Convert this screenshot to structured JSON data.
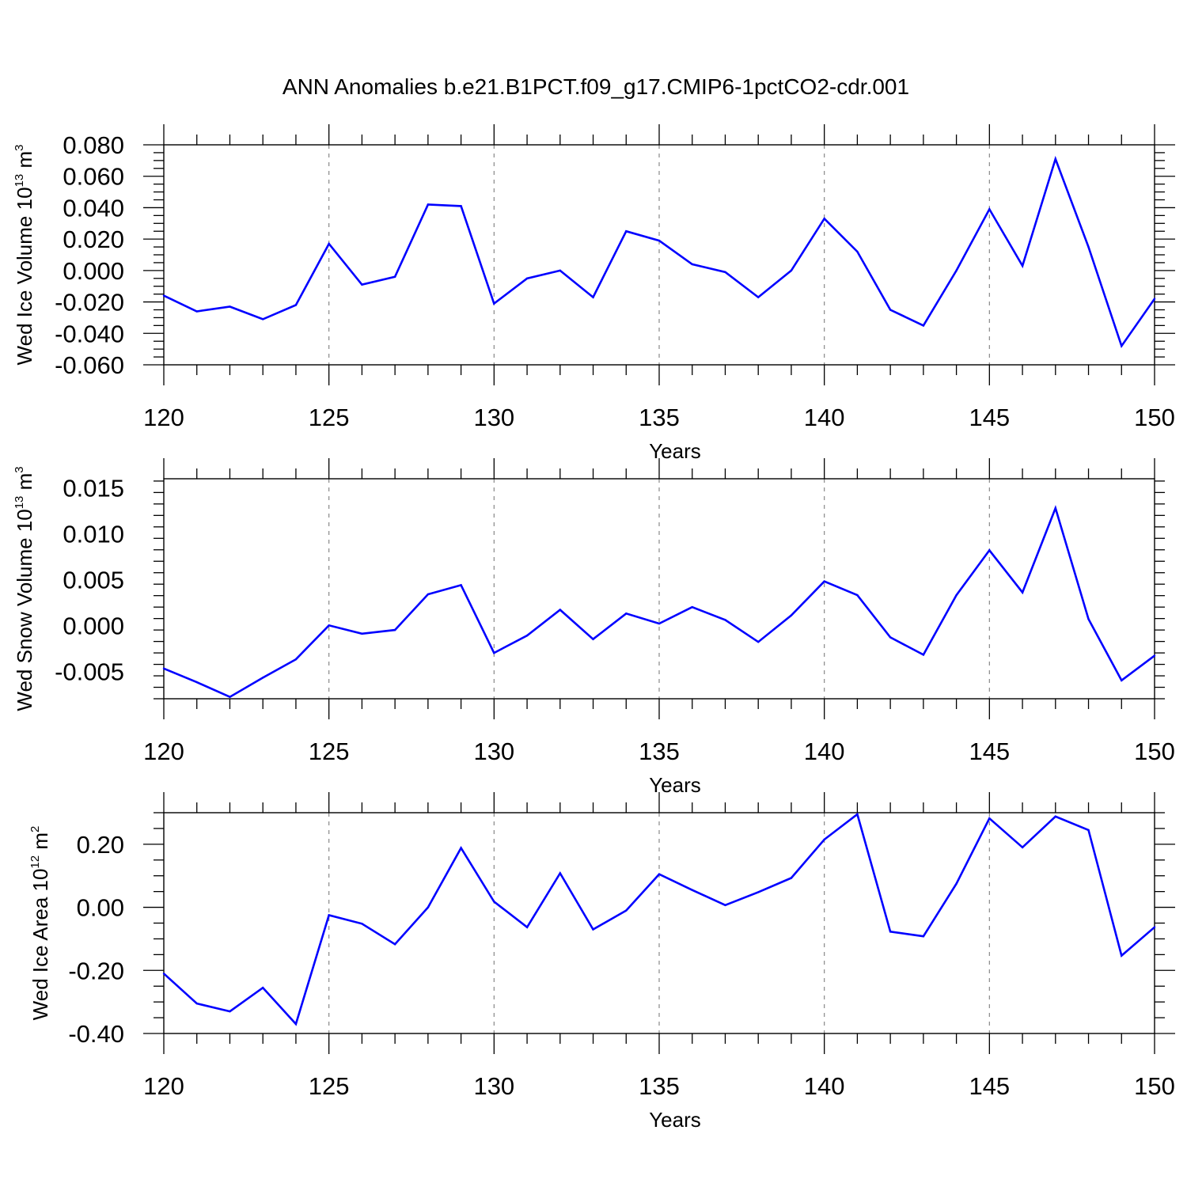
{
  "figure": {
    "title": "ANN Anomalies b.e21.B1PCT.f09_g17.CMIP6-1pctCO2-cdr.001"
  },
  "chart_data": [
    {
      "type": "line",
      "title": "",
      "xlabel": "Years",
      "ylabel": {
        "prefix": "Wed Ice Volume 10",
        "exponent": "13",
        "unit": " m",
        "unit_exponent": "3"
      },
      "xlim": [
        120,
        150
      ],
      "ylim": [
        -0.06,
        0.08
      ],
      "x_ticks": [
        120,
        125,
        130,
        135,
        140,
        145,
        150
      ],
      "x_tick_labels": [
        "120",
        "125",
        "130",
        "135",
        "140",
        "145",
        "150"
      ],
      "y_ticks": [
        -0.06,
        -0.04,
        -0.02,
        0.0,
        0.02,
        0.04,
        0.06,
        0.08
      ],
      "y_tick_labels": [
        "-0.060",
        "-0.040",
        "-0.020",
        "0.000",
        "0.020",
        "0.040",
        "0.060",
        "0.080"
      ],
      "grid": "vertical dashed at major x ticks",
      "line_color": "#0000ff",
      "x": [
        120,
        121,
        122,
        123,
        124,
        125,
        126,
        127,
        128,
        129,
        130,
        131,
        132,
        133,
        134,
        135,
        136,
        137,
        138,
        139,
        140,
        141,
        142,
        143,
        144,
        145,
        146,
        147,
        148,
        149,
        150
      ],
      "values": [
        -0.016,
        -0.026,
        -0.023,
        -0.031,
        -0.022,
        0.017,
        -0.009,
        -0.004,
        0.042,
        0.041,
        -0.021,
        -0.005,
        0.0,
        -0.017,
        0.025,
        0.019,
        0.004,
        -0.001,
        -0.017,
        0.0,
        0.033,
        0.012,
        -0.025,
        -0.035,
        0.0,
        0.039,
        0.003,
        0.071,
        0.015,
        -0.048,
        -0.018
      ]
    },
    {
      "type": "line",
      "title": "",
      "xlabel": "Years",
      "ylabel": {
        "prefix": "Wed Snow Volume 10",
        "exponent": "13",
        "unit": " m",
        "unit_exponent": "3"
      },
      "xlim": [
        120,
        150
      ],
      "ylim": [
        -0.008,
        0.016
      ],
      "x_ticks": [
        120,
        125,
        130,
        135,
        140,
        145,
        150
      ],
      "x_tick_labels": [
        "120",
        "125",
        "130",
        "135",
        "140",
        "145",
        "150"
      ],
      "y_ticks": [
        -0.005,
        0.0,
        0.005,
        0.01,
        0.015
      ],
      "y_tick_labels": [
        "-0.005",
        "0.000",
        "0.005",
        "0.010",
        "0.015"
      ],
      "grid": "vertical dashed at major x ticks",
      "line_color": "#0000ff",
      "x": [
        120,
        121,
        122,
        123,
        124,
        125,
        126,
        127,
        128,
        129,
        130,
        131,
        132,
        133,
        134,
        135,
        136,
        137,
        138,
        139,
        140,
        141,
        142,
        143,
        144,
        145,
        146,
        147,
        148,
        149,
        150
      ],
      "values": [
        -0.0047,
        -0.0062,
        -0.0078,
        -0.0057,
        -0.0037,
        0.0,
        -0.0009,
        -0.0005,
        0.0034,
        0.0044,
        -0.003,
        -0.0011,
        0.0017,
        -0.0015,
        0.0013,
        0.0002,
        0.002,
        0.0006,
        -0.0018,
        0.0011,
        0.0048,
        0.0033,
        -0.0013,
        -0.0032,
        0.0033,
        0.0082,
        0.0036,
        0.0128,
        0.0007,
        -0.006,
        -0.0033
      ]
    },
    {
      "type": "line",
      "title": "",
      "xlabel": "Years",
      "ylabel": {
        "prefix": "Wed Ice Area 10",
        "exponent": "12",
        "unit": " m",
        "unit_exponent": "2"
      },
      "xlim": [
        120,
        150
      ],
      "ylim": [
        -0.4,
        0.3
      ],
      "x_ticks": [
        120,
        125,
        130,
        135,
        140,
        145,
        150
      ],
      "x_tick_labels": [
        "120",
        "125",
        "130",
        "135",
        "140",
        "145",
        "150"
      ],
      "y_ticks": [
        -0.4,
        -0.2,
        0.0,
        0.2
      ],
      "y_tick_labels": [
        "-0.40",
        "-0.20",
        "0.00",
        "0.20"
      ],
      "grid": "vertical dashed at major x ticks",
      "line_color": "#0000ff",
      "x": [
        120,
        121,
        122,
        123,
        124,
        125,
        126,
        127,
        128,
        129,
        130,
        131,
        132,
        133,
        134,
        135,
        136,
        137,
        138,
        139,
        140,
        141,
        142,
        143,
        144,
        145,
        146,
        147,
        148,
        149,
        150
      ],
      "values": [
        -0.21,
        -0.305,
        -0.33,
        -0.255,
        -0.37,
        -0.025,
        -0.052,
        -0.117,
        0.0,
        0.188,
        0.018,
        -0.063,
        0.108,
        -0.07,
        -0.01,
        0.105,
        0.055,
        0.007,
        0.048,
        0.093,
        0.215,
        0.295,
        -0.077,
        -0.092,
        0.075,
        0.282,
        0.19,
        0.288,
        0.245,
        -0.153,
        -0.063
      ]
    }
  ]
}
